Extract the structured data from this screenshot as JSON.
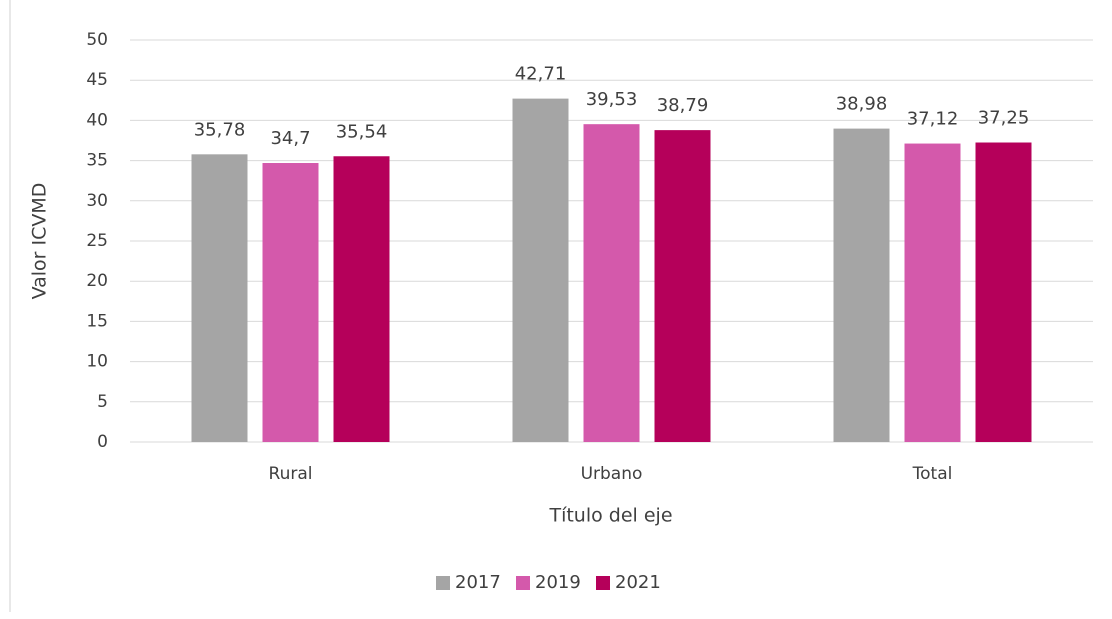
{
  "chart_data": {
    "type": "bar",
    "categories": [
      "Rural",
      "Urbano",
      "Total"
    ],
    "series": [
      {
        "name": "2017",
        "color": "#a5a5a5",
        "values": [
          35.78,
          42.71,
          38.98
        ],
        "value_labels": [
          "35,78",
          "42,71",
          "38,98"
        ]
      },
      {
        "name": "2019",
        "color": "#d459ab",
        "values": [
          34.7,
          39.53,
          37.12
        ],
        "value_labels": [
          "34,7",
          "39,53",
          "37,12"
        ]
      },
      {
        "name": "2021",
        "color": "#b5005a",
        "values": [
          35.54,
          38.79,
          37.25
        ],
        "value_labels": [
          "35,54",
          "38,79",
          "37,25"
        ]
      }
    ],
    "xlabel": "Título del eje",
    "ylabel": "Valor ICVMD",
    "ylim": [
      0,
      50
    ],
    "yticks": [
      0,
      5,
      10,
      15,
      20,
      25,
      30,
      35,
      40,
      45,
      50
    ],
    "grid": true,
    "legend": "bottom"
  }
}
